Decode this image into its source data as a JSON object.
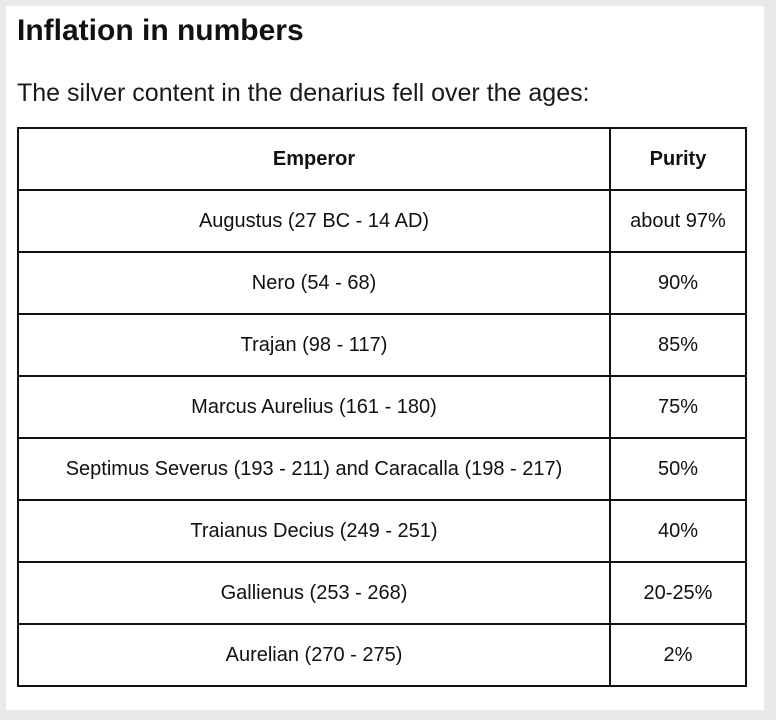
{
  "heading": "Inflation in numbers",
  "intro": "The silver content in the denarius fell over the ages:",
  "table": {
    "headers": [
      "Emperor",
      "Purity"
    ],
    "rows": [
      [
        "Augustus (27 BC - 14 AD)",
        "about 97%"
      ],
      [
        "Nero (54 - 68)",
        "90%"
      ],
      [
        "Trajan (98 - 117)",
        "85%"
      ],
      [
        "Marcus Aurelius (161 - 180)",
        "75%"
      ],
      [
        "Septimus Severus (193 - 211) and Caracalla (198 - 217)",
        "50%"
      ],
      [
        "Traianus Decius (249 - 251)",
        "40%"
      ],
      [
        "Gallienus (253 - 268)",
        "20-25%"
      ],
      [
        "Aurelian (270 - 275)",
        "2%"
      ]
    ]
  }
}
